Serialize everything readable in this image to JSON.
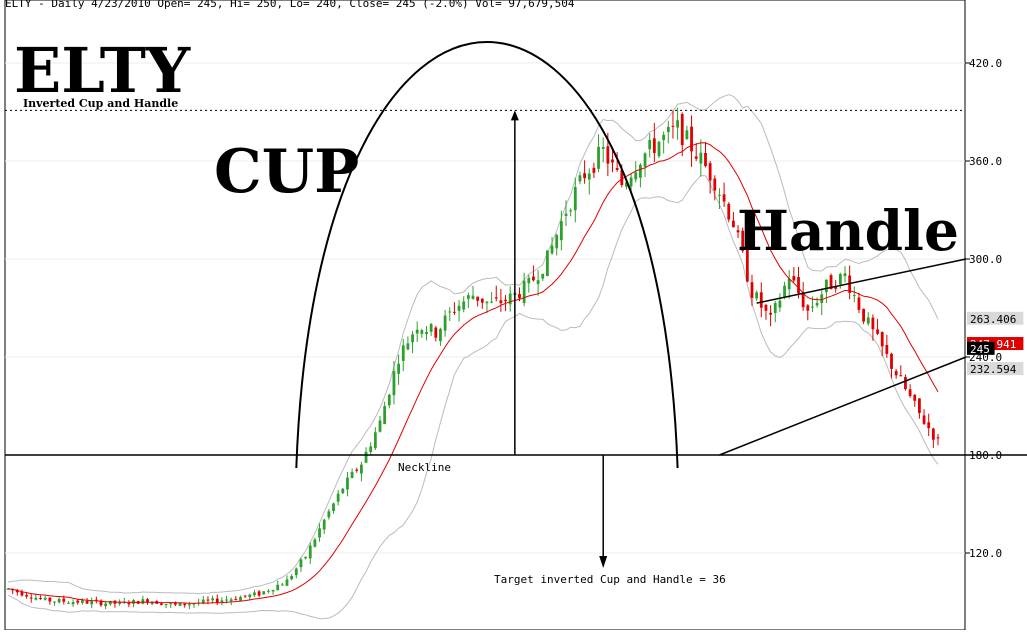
{
  "chart_data": {
    "type": "candlestick",
    "header": "ELTY - Daily 4/23/2010 Open= 245, Hi= 250, Lo= 240, Close= 245 (-2.0%) Vol= 97,679,504",
    "symbol": "ELTY",
    "subtitle": "Inverted Cup and Handle",
    "annotations": {
      "cup": "CUP",
      "handle": "Handle",
      "neckline": "Neckline",
      "target": "Target inverted Cup and Handle = 36"
    },
    "y_axis": {
      "ticks": [
        120,
        180,
        240,
        300,
        360,
        420
      ],
      "tick_labels": [
        "120.0",
        "180.0",
        "240.0",
        "300.0",
        "360.0",
        "420.0"
      ],
      "range": [
        83,
        450
      ]
    },
    "price_labels": [
      {
        "text": "263.406",
        "value": 263.406,
        "bg": "#d9d9d9",
        "fg": "#000000"
      },
      {
        "text": "247.941",
        "value": 247.941,
        "bg": "#e00000",
        "fg": "#ffffff"
      },
      {
        "text": "245",
        "value": 245,
        "bg": "#000000",
        "fg": "#ffffff"
      },
      {
        "text": "232.594",
        "value": 232.594,
        "bg": "#d9d9d9",
        "fg": "#000000"
      }
    ],
    "neckline_value": 180,
    "resistance_value": 391,
    "trading_days": 200,
    "close_path": [
      [
        0,
        98
      ],
      [
        8,
        91
      ],
      [
        16,
        90
      ],
      [
        24,
        89
      ],
      [
        30,
        91
      ],
      [
        36,
        88
      ],
      [
        42,
        90
      ],
      [
        48,
        92
      ],
      [
        54,
        95
      ],
      [
        60,
        103
      ],
      [
        64,
        118
      ],
      [
        68,
        140
      ],
      [
        72,
        160
      ],
      [
        76,
        175
      ],
      [
        80,
        200
      ],
      [
        84,
        240
      ],
      [
        88,
        260
      ],
      [
        92,
        255
      ],
      [
        96,
        270
      ],
      [
        100,
        278
      ],
      [
        104,
        272
      ],
      [
        108,
        276
      ],
      [
        112,
        284
      ],
      [
        116,
        300
      ],
      [
        120,
        330
      ],
      [
        124,
        352
      ],
      [
        128,
        366
      ],
      [
        132,
        346
      ],
      [
        136,
        362
      ],
      [
        140,
        372
      ],
      [
        144,
        380
      ],
      [
        148,
        365
      ],
      [
        152,
        348
      ],
      [
        156,
        322
      ],
      [
        160,
        280
      ],
      [
        164,
        262
      ],
      [
        168,
        290
      ],
      [
        172,
        268
      ],
      [
        176,
        283
      ],
      [
        180,
        290
      ],
      [
        184,
        265
      ],
      [
        188,
        245
      ],
      [
        192,
        225
      ],
      [
        196,
        205
      ],
      [
        200,
        188
      ],
      [
        204,
        182
      ],
      [
        208,
        200
      ],
      [
        212,
        220
      ],
      [
        216,
        246
      ],
      [
        220,
        272
      ],
      [
        226,
        268
      ],
      [
        232,
        250
      ],
      [
        238,
        232
      ],
      [
        244,
        225
      ],
      [
        250,
        230
      ],
      [
        256,
        248
      ],
      [
        262,
        272
      ],
      [
        268,
        260
      ],
      [
        274,
        252
      ],
      [
        280,
        255
      ],
      [
        286,
        250
      ],
      [
        292,
        245
      ]
    ],
    "colors": {
      "up": "#2ca02c",
      "down": "#e00000",
      "sma": "#e00000",
      "band": "#bbbbbb",
      "line": "#000000"
    }
  }
}
